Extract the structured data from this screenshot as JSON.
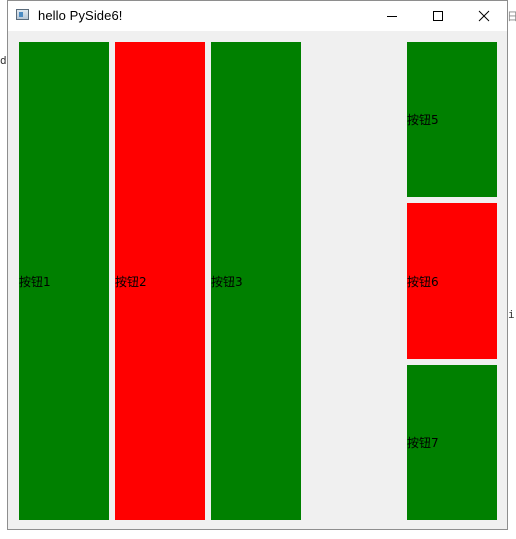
{
  "background": {
    "left_fragment": "d",
    "right_fragment": "i",
    "top_right_fragment": "日"
  },
  "window": {
    "title": "hello PySide6!",
    "icons": {
      "app": "app-window-icon",
      "minimize": "minimize-icon",
      "maximize": "maximize-icon",
      "close": "close-icon"
    }
  },
  "buttons": [
    {
      "id": "b1",
      "label": "按钮1",
      "color": "#008000"
    },
    {
      "id": "b2",
      "label": "按钮2",
      "color": "#ff0000"
    },
    {
      "id": "b3",
      "label": "按钮3",
      "color": "#008000"
    },
    {
      "id": "b5",
      "label": "按钮5",
      "color": "#008000"
    },
    {
      "id": "b6",
      "label": "按钮6",
      "color": "#ff0000"
    },
    {
      "id": "b7",
      "label": "按钮7",
      "color": "#008000"
    }
  ]
}
